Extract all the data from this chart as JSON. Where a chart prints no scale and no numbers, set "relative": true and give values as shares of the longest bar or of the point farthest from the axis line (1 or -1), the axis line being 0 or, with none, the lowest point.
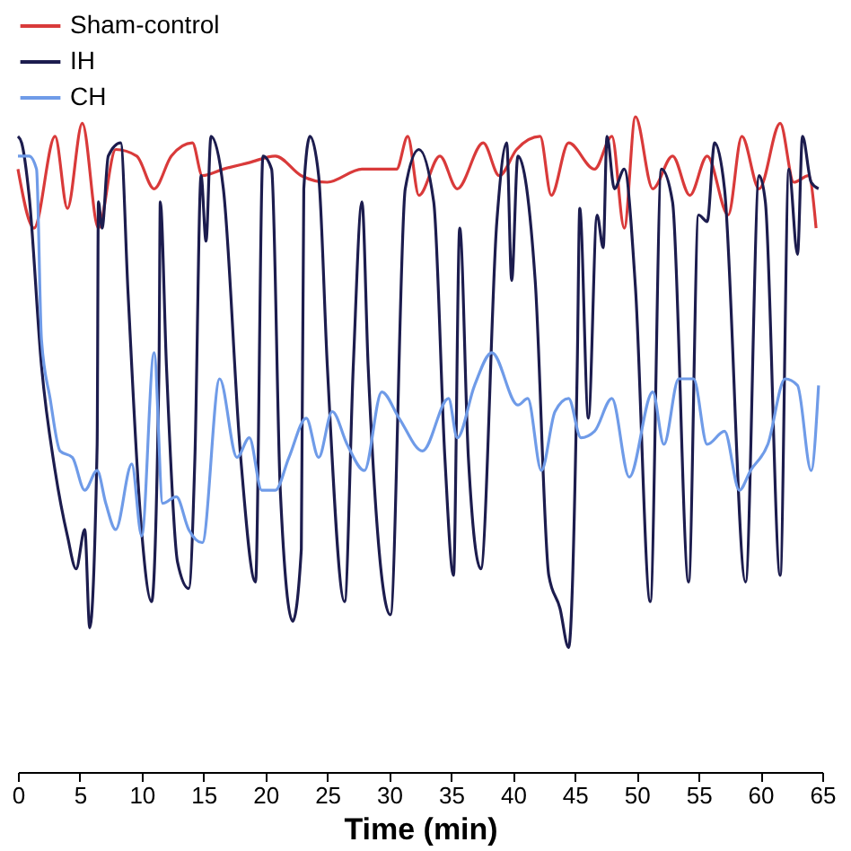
{
  "chart_data": {
    "type": "line",
    "xlabel": "Time (min)",
    "relative": true,
    "xlim": [
      0,
      65
    ],
    "xticks": [
      0,
      5,
      10,
      15,
      20,
      25,
      30,
      35,
      40,
      45,
      50,
      55,
      60,
      65
    ],
    "legend": "top",
    "grid": false,
    "marker": "none",
    "line_style": "solid",
    "series": [
      {
        "name": "Sham-control",
        "color": "#d93a3a",
        "x": [
          0,
          1.3,
          3.0,
          4.0,
          5.2,
          6.5,
          7.9,
          9.6,
          11.0,
          12.4,
          14.1,
          14.9,
          16.6,
          18.7,
          20.8,
          22.9,
          25.0,
          27.8,
          30.6,
          31.5,
          32.4,
          34.1,
          35.5,
          37.6,
          38.9,
          40.3,
          42.2,
          43.1,
          44.5,
          46.6,
          48.0,
          49.0,
          49.9,
          51.3,
          52.9,
          54.3,
          55.7,
          57.4,
          58.5,
          59.9,
          61.6,
          62.7,
          63.9,
          64.5
        ],
        "values": [
          0.92,
          0.83,
          0.97,
          0.86,
          0.99,
          0.83,
          0.95,
          0.94,
          0.89,
          0.94,
          0.96,
          0.91,
          0.92,
          0.93,
          0.94,
          0.91,
          0.9,
          0.92,
          0.92,
          0.97,
          0.88,
          0.94,
          0.89,
          0.96,
          0.91,
          0.95,
          0.97,
          0.88,
          0.96,
          0.92,
          0.97,
          0.83,
          1.0,
          0.89,
          0.94,
          0.88,
          0.94,
          0.85,
          0.97,
          0.89,
          0.99,
          0.9,
          0.91,
          0.83
        ]
      },
      {
        "name": "IH",
        "color": "#1c1c4e",
        "x": [
          0,
          0.3,
          0.9,
          1.9,
          3.0,
          4.0,
          4.7,
          5.4,
          5.8,
          6.4,
          6.5,
          6.8,
          7.3,
          8.3,
          8.9,
          9.9,
          10.8,
          11.4,
          11.5,
          12.0,
          12.9,
          13.8,
          14.3,
          14.8,
          15.2,
          15.6,
          16.6,
          18.0,
          19.2,
          19.8,
          20.5,
          21.2,
          22.2,
          22.9,
          23.1,
          23.6,
          24.3,
          25.0,
          26.4,
          27.1,
          27.8,
          28.3,
          30.1,
          31.3,
          32.4,
          33.6,
          34.5,
          35.2,
          35.7,
          36.4,
          37.4,
          38.7,
          39.5,
          39.9,
          40.4,
          41.8,
          42.9,
          43.8,
          44.5,
          45.2,
          45.4,
          46.1,
          46.8,
          47.3,
          47.6,
          48.2,
          49.0,
          49.9,
          51.1,
          52.0,
          52.9,
          54.2,
          55.0,
          55.7,
          56.3,
          57.1,
          58.8,
          59.9,
          60.4,
          61.6,
          62.3,
          63.0,
          63.4,
          64.1,
          64.7
        ],
        "values": [
          0.97,
          0.96,
          0.88,
          0.62,
          0.46,
          0.36,
          0.31,
          0.37,
          0.22,
          0.5,
          0.87,
          0.83,
          0.94,
          0.96,
          0.73,
          0.39,
          0.26,
          0.62,
          0.87,
          0.62,
          0.32,
          0.28,
          0.48,
          0.91,
          0.81,
          0.97,
          0.89,
          0.48,
          0.29,
          0.94,
          0.92,
          0.43,
          0.23,
          0.34,
          0.89,
          0.97,
          0.91,
          0.62,
          0.26,
          0.62,
          0.87,
          0.62,
          0.24,
          0.89,
          0.95,
          0.87,
          0.48,
          0.3,
          0.83,
          0.48,
          0.31,
          0.84,
          0.96,
          0.75,
          0.94,
          0.75,
          0.3,
          0.25,
          0.19,
          0.62,
          0.86,
          0.54,
          0.85,
          0.8,
          0.97,
          0.89,
          0.92,
          0.74,
          0.26,
          0.92,
          0.87,
          0.29,
          0.85,
          0.84,
          0.96,
          0.89,
          0.29,
          0.91,
          0.87,
          0.3,
          0.92,
          0.79,
          0.97,
          0.9,
          0.89
        ]
      },
      {
        "name": "CH",
        "color": "#6f9be8",
        "x": [
          0,
          0.9,
          1.5,
          1.9,
          2.6,
          3.4,
          4.4,
          5.4,
          6.4,
          7.1,
          7.9,
          9.2,
          10.0,
          11.0,
          11.7,
          12.8,
          13.8,
          14.9,
          16.3,
          17.7,
          18.7,
          19.7,
          20.8,
          21.9,
          23.3,
          24.3,
          25.4,
          26.6,
          28.0,
          29.4,
          30.8,
          32.7,
          34.8,
          35.5,
          36.9,
          38.3,
          40.4,
          41.2,
          42.3,
          43.4,
          44.5,
          45.5,
          46.6,
          48.0,
          49.4,
          51.3,
          52.2,
          53.4,
          54.6,
          55.7,
          57.1,
          58.3,
          59.2,
          60.6,
          62.0,
          63.0,
          64.1,
          64.7
        ],
        "values": [
          0.94,
          0.94,
          0.92,
          0.66,
          0.57,
          0.49,
          0.48,
          0.43,
          0.46,
          0.41,
          0.37,
          0.47,
          0.36,
          0.64,
          0.41,
          0.42,
          0.37,
          0.35,
          0.6,
          0.48,
          0.51,
          0.43,
          0.43,
          0.48,
          0.54,
          0.48,
          0.55,
          0.5,
          0.46,
          0.58,
          0.54,
          0.49,
          0.57,
          0.51,
          0.59,
          0.64,
          0.56,
          0.57,
          0.46,
          0.55,
          0.57,
          0.51,
          0.52,
          0.57,
          0.45,
          0.58,
          0.5,
          0.6,
          0.6,
          0.5,
          0.52,
          0.43,
          0.46,
          0.5,
          0.6,
          0.59,
          0.46,
          0.59
        ]
      }
    ]
  }
}
